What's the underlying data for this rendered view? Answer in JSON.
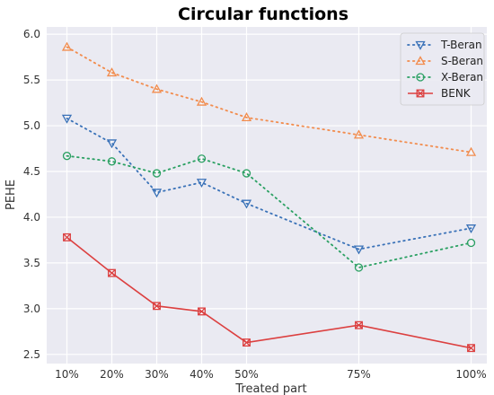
{
  "chart_data": {
    "type": "line",
    "title": "Circular functions",
    "xlabel": "Treated part",
    "ylabel": "PEHE",
    "x": [
      10,
      20,
      30,
      40,
      50,
      75,
      100
    ],
    "x_tick_labels": [
      "10%",
      "20%",
      "30%",
      "40%",
      "50%",
      "75%",
      "100%"
    ],
    "y_ticks": [
      "2.5",
      "3.0",
      "3.5",
      "4.0",
      "4.5",
      "5.0",
      "5.5",
      "6.0"
    ],
    "ylim": [
      2.4,
      6.08
    ],
    "grid": true,
    "legend_position": "top-right",
    "series": [
      {
        "name": "T-Beran",
        "values": [
          5.08,
          4.81,
          4.27,
          4.38,
          4.15,
          3.65,
          3.88
        ],
        "color": "#3a72b8",
        "line": "dotted",
        "marker": "triangle-down"
      },
      {
        "name": "S-Beran",
        "values": [
          5.86,
          5.58,
          5.4,
          5.26,
          5.09,
          4.9,
          4.71
        ],
        "color": "#f28c4d",
        "line": "dotted",
        "marker": "triangle-up"
      },
      {
        "name": "X-Beran",
        "values": [
          4.67,
          4.61,
          4.48,
          4.64,
          4.48,
          3.45,
          3.72
        ],
        "color": "#2aa062",
        "line": "dotted",
        "marker": "circle"
      },
      {
        "name": "BENK",
        "values": [
          3.78,
          3.39,
          3.03,
          2.97,
          2.63,
          2.82,
          2.57
        ],
        "color": "#dc4040",
        "line": "solid",
        "marker": "x-in-square"
      }
    ]
  },
  "colors": {
    "plot_background": "#eaeaf2",
    "grid": "#ffffff"
  }
}
